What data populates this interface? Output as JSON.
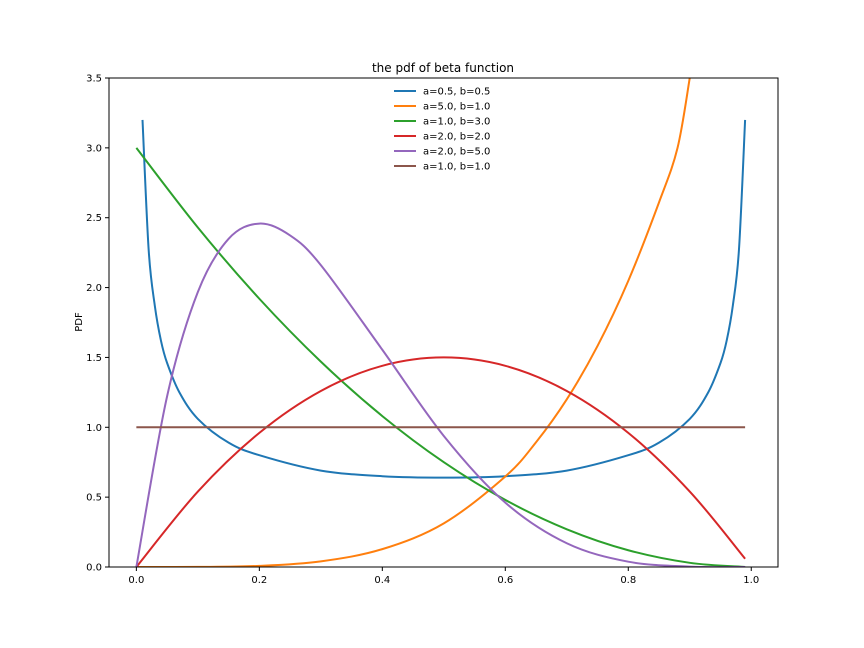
{
  "chart_data": {
    "type": "line",
    "title": "the pdf of beta function",
    "xlabel": "",
    "ylabel": "PDF",
    "xlim": [
      -0.0445,
      1.0435
    ],
    "ylim": [
      0,
      3.5
    ],
    "xticks": [
      "0.0",
      "0.2",
      "0.4",
      "0.6",
      "0.8",
      "1.0"
    ],
    "yticks": [
      "0.0",
      "0.5",
      "1.0",
      "1.5",
      "2.0",
      "2.5",
      "3.0",
      "3.5"
    ],
    "grid": false,
    "legend": {
      "position": "top-center"
    },
    "series": [
      {
        "name": "a=0.5, b=0.5",
        "color": "#1f77b4",
        "x": [
          0.01,
          0.02,
          0.03,
          0.04,
          0.05,
          0.07,
          0.1,
          0.15,
          0.2,
          0.3,
          0.4,
          0.5,
          0.6,
          0.7,
          0.8,
          0.85,
          0.9,
          0.93,
          0.95,
          0.96,
          0.97,
          0.98,
          0.99
        ],
        "y": [
          3.2,
          2.27,
          1.87,
          1.62,
          1.46,
          1.25,
          1.06,
          0.89,
          0.8,
          0.69,
          0.65,
          0.64,
          0.65,
          0.69,
          0.8,
          0.89,
          1.06,
          1.25,
          1.46,
          1.62,
          1.87,
          2.27,
          3.2
        ]
      },
      {
        "name": "a=5.0, b=1.0",
        "color": "#ff7f0e",
        "x": [
          0.0,
          0.1,
          0.2,
          0.3,
          0.4,
          0.5,
          0.6,
          0.65,
          0.7,
          0.75,
          0.8,
          0.85,
          0.88,
          0.9
        ],
        "y": [
          0.0,
          0.0005,
          0.008,
          0.0405,
          0.128,
          0.3125,
          0.648,
          0.893,
          1.2,
          1.582,
          2.048,
          2.61,
          2.998,
          3.5
        ]
      },
      {
        "name": "a=1.0, b=3.0",
        "color": "#2ca02c",
        "x": [
          0.0,
          0.1,
          0.2,
          0.3,
          0.4,
          0.5,
          0.6,
          0.7,
          0.8,
          0.9,
          0.99
        ],
        "y": [
          3.0,
          2.43,
          1.92,
          1.47,
          1.08,
          0.75,
          0.48,
          0.27,
          0.12,
          0.03,
          0.0003
        ]
      },
      {
        "name": "a=2.0, b=2.0",
        "color": "#d62728",
        "x": [
          0.0,
          0.1,
          0.2,
          0.3,
          0.4,
          0.5,
          0.6,
          0.7,
          0.8,
          0.9,
          0.99
        ],
        "y": [
          0.0,
          0.54,
          0.96,
          1.26,
          1.44,
          1.5,
          1.44,
          1.26,
          0.96,
          0.54,
          0.0594
        ]
      },
      {
        "name": "a=2.0, b=5.0",
        "color": "#9467bd",
        "x": [
          0.0,
          0.05,
          0.1,
          0.15,
          0.2,
          0.25,
          0.3,
          0.4,
          0.5,
          0.6,
          0.7,
          0.8,
          0.9,
          0.99
        ],
        "y": [
          0.0,
          1.222,
          1.968,
          2.349,
          2.458,
          2.373,
          2.161,
          1.555,
          0.938,
          0.461,
          0.17,
          0.038,
          0.003,
          0.0
        ]
      },
      {
        "name": "a=1.0, b=1.0",
        "color": "#8c564b",
        "x": [
          0.0,
          0.99
        ],
        "y": [
          1.0,
          1.0
        ]
      }
    ]
  }
}
